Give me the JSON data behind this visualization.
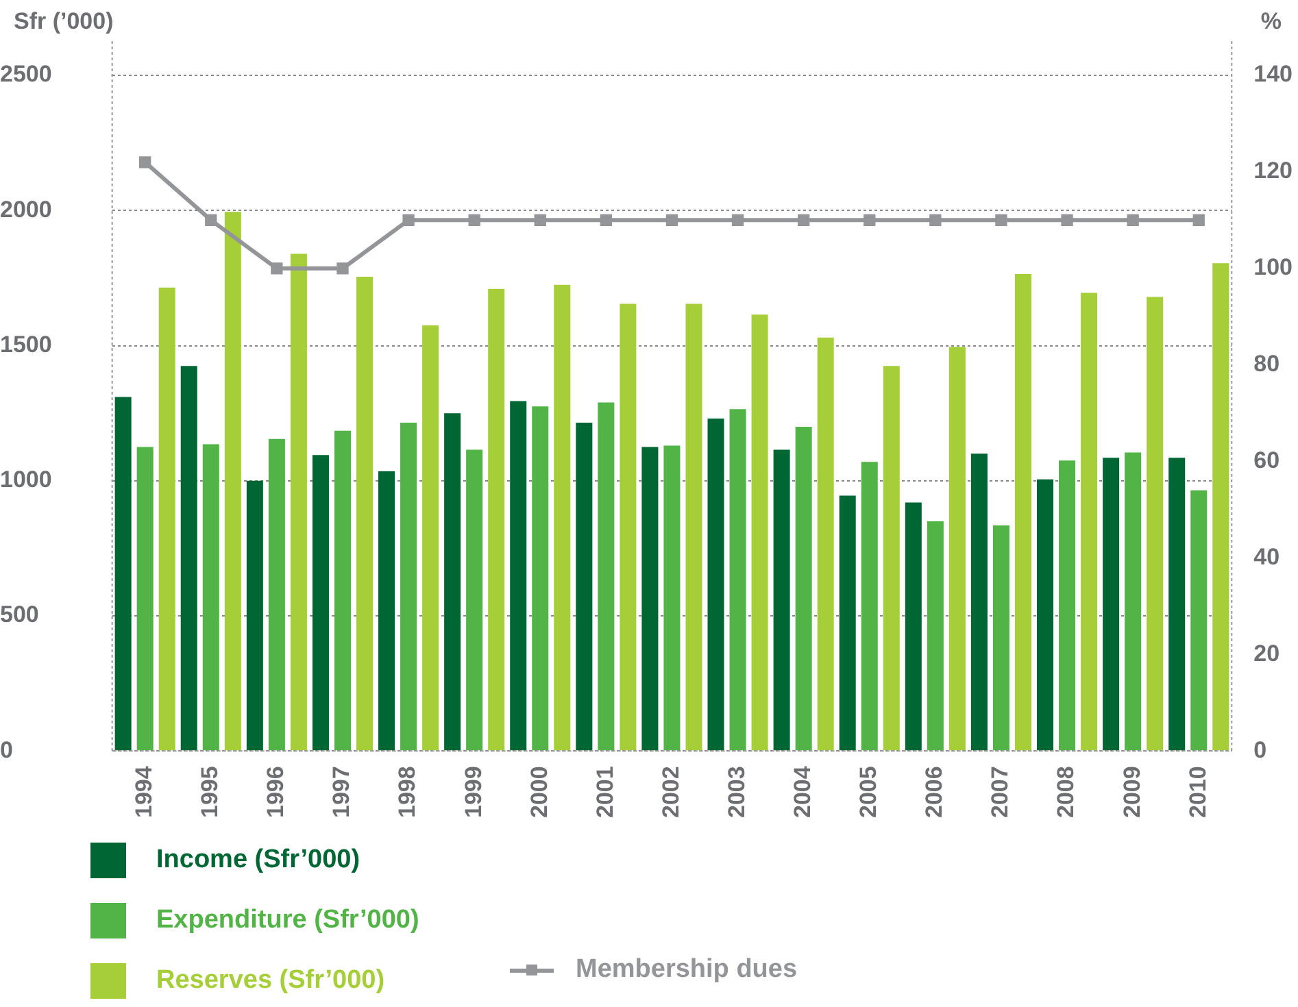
{
  "chart_data": {
    "type": "bar",
    "ylabel": "Sfr (’000)",
    "y2label": "%",
    "categories": [
      "1994",
      "1995",
      "1996",
      "1997",
      "1998",
      "1999",
      "2000",
      "2001",
      "2002",
      "2003",
      "2004",
      "2005",
      "2006",
      "2007",
      "2008",
      "2009",
      "2010"
    ],
    "series": [
      {
        "name": "Income (Sfr’000)",
        "color": "#006633",
        "values": [
          1310,
          1425,
          1000,
          1095,
          1035,
          1250,
          1295,
          1215,
          1125,
          1230,
          1115,
          945,
          920,
          1100,
          1005,
          1085,
          1085
        ]
      },
      {
        "name": "Expenditure (Sfr’000)",
        "color": "#52b347",
        "values": [
          1125,
          1135,
          1155,
          1185,
          1215,
          1115,
          1275,
          1290,
          1130,
          1265,
          1200,
          1070,
          850,
          835,
          1075,
          1105,
          965
        ]
      },
      {
        "name": "Reserves (Sfr’000)",
        "color": "#a6ce39",
        "values": [
          1715,
          1995,
          1840,
          1755,
          1575,
          1710,
          1725,
          1655,
          1655,
          1615,
          1530,
          1425,
          1495,
          1765,
          1695,
          1680,
          1805
        ]
      },
      {
        "name": "Membership dues",
        "color": "#939598",
        "type": "line",
        "axis": "y2",
        "marker": "square",
        "values": [
          122,
          110,
          100,
          100,
          110,
          110,
          110,
          110,
          110,
          110,
          110,
          110,
          110,
          110,
          110,
          110,
          110
        ]
      }
    ],
    "ylim": [
      0,
      2500
    ],
    "yticks": [
      0,
      500,
      1000,
      1500,
      2000,
      2500
    ],
    "y2lim": [
      0,
      140
    ],
    "y2ticks": [
      0,
      20,
      40,
      60,
      80,
      100,
      120,
      140
    ],
    "grid": "y",
    "legend": "bottom"
  }
}
